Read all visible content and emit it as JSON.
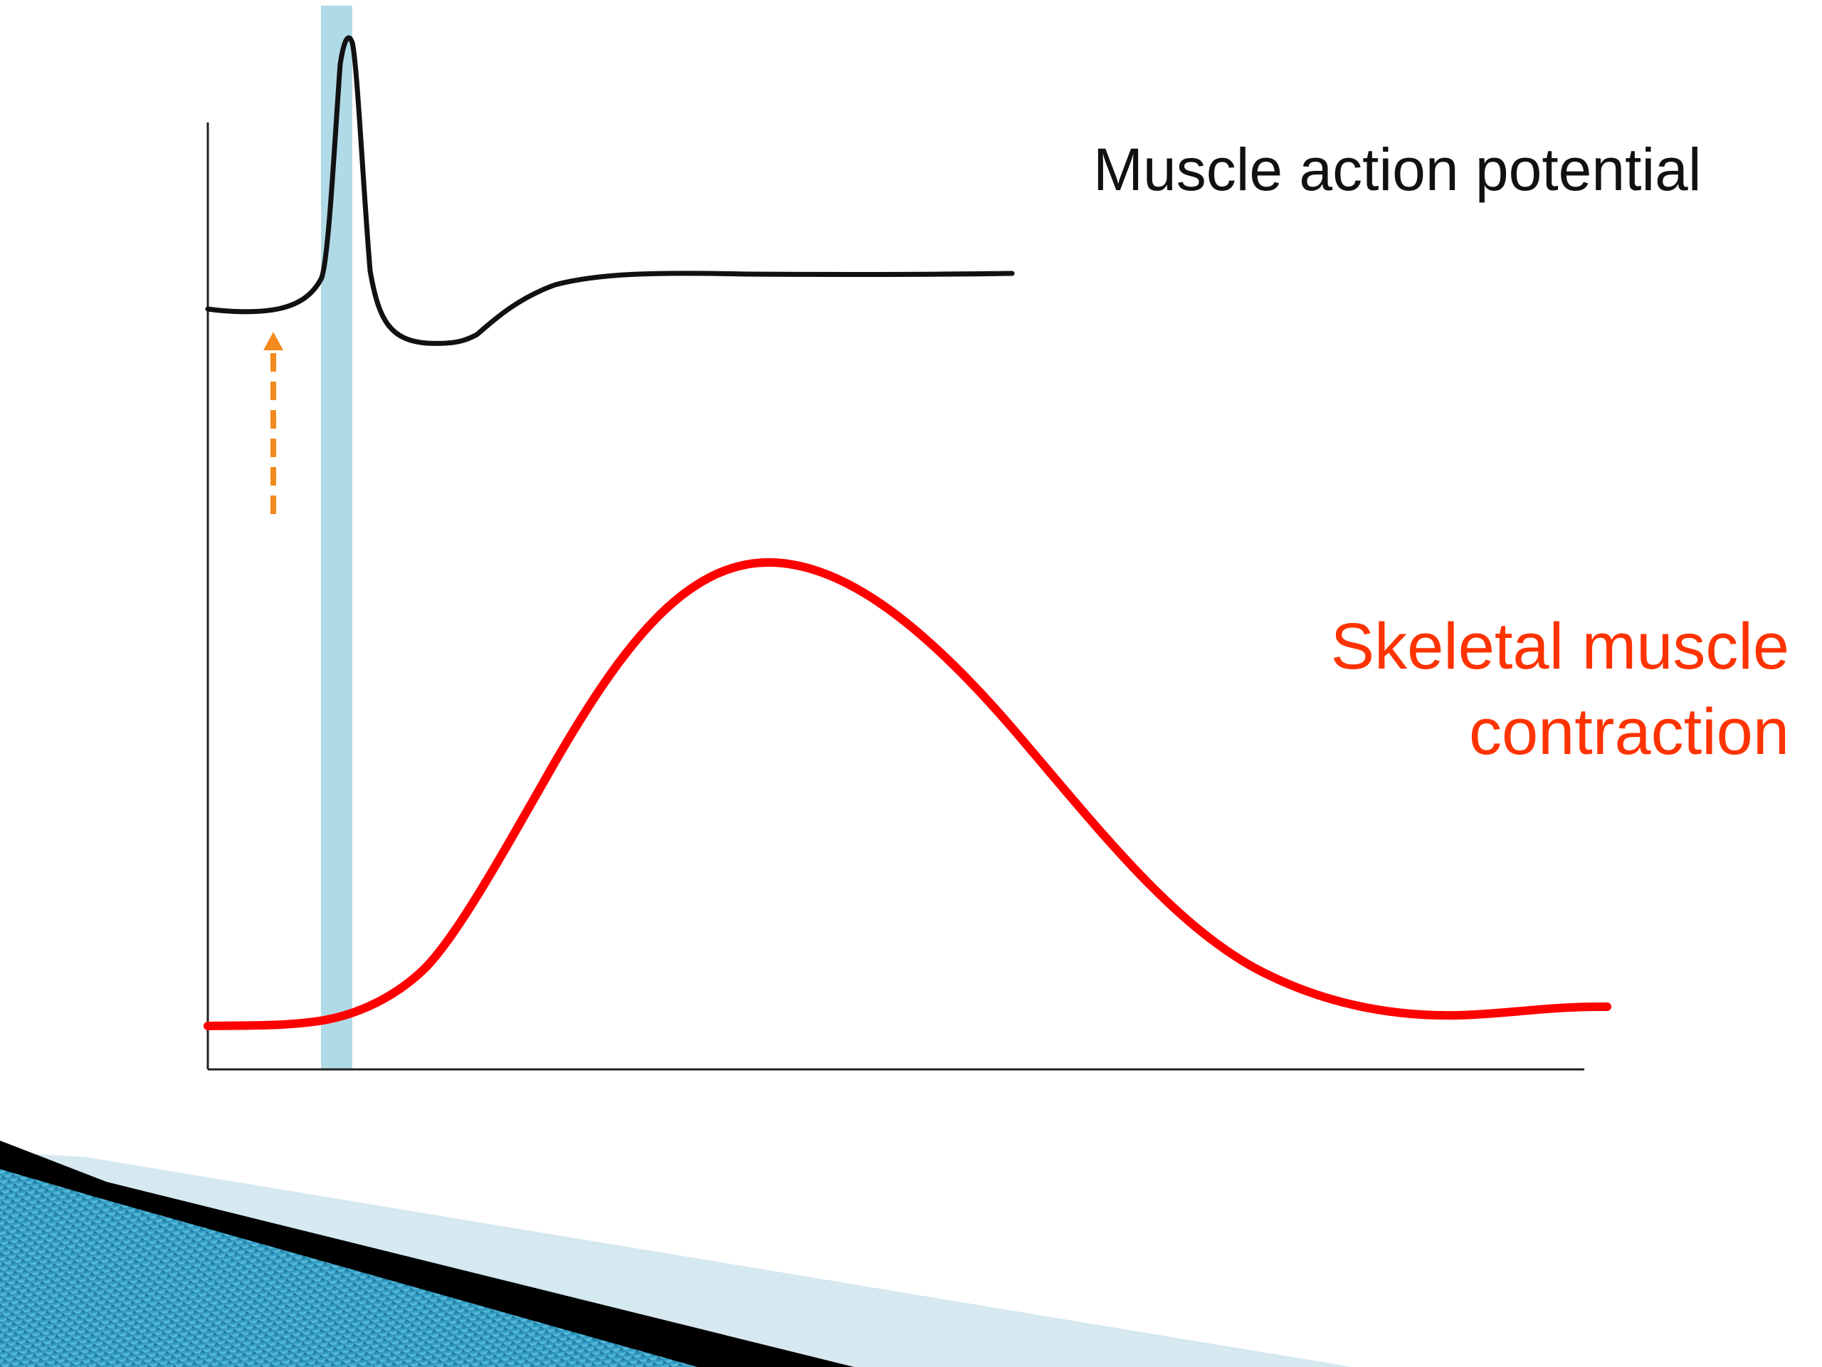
{
  "labels": {
    "action_potential": "Muscle action potential",
    "contraction_line1": "Skeletal muscle",
    "contraction_line2": "contraction"
  },
  "colors": {
    "action_potential_trace": "#111111",
    "contraction_trace": "#ff0000",
    "contraction_label": "#ff3300",
    "latent_period_band": "#add8e6",
    "stimulus_arrow": "#f28a1e",
    "axis": "#222222",
    "decoration_blue": "#1b7fa6",
    "decoration_light": "#d6e8f0",
    "decoration_dark": "#000000"
  },
  "icons": {
    "stimulus": "dashed-up-arrow-icon"
  }
}
